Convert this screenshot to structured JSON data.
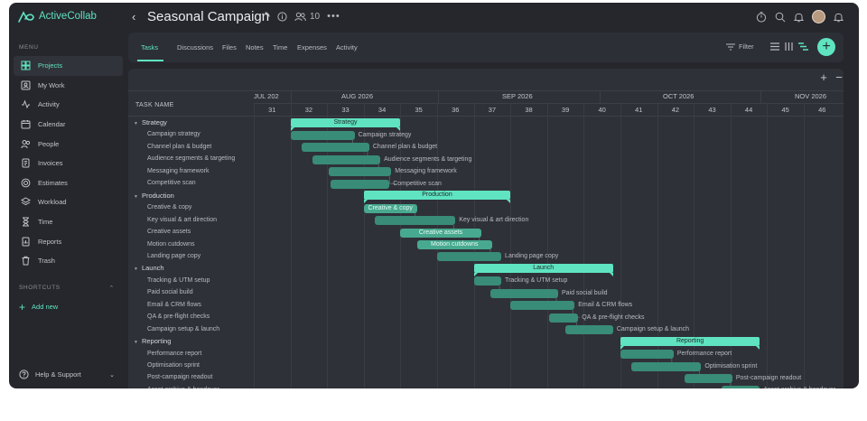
{
  "app": {
    "name": "ActiveCollab"
  },
  "header": {
    "title": "Seasonal Campaign",
    "member_count": "10"
  },
  "sidebar": {
    "menu_title": "MENU",
    "items": [
      {
        "label": "Projects",
        "icon": "grid-icon",
        "active": true
      },
      {
        "label": "My Work",
        "icon": "user-card-icon"
      },
      {
        "label": "Activity",
        "icon": "activity-icon"
      },
      {
        "label": "Calendar",
        "icon": "calendar-icon"
      },
      {
        "label": "People",
        "icon": "people-icon"
      },
      {
        "label": "Invoices",
        "icon": "invoice-icon"
      },
      {
        "label": "Estimates",
        "icon": "estimate-icon"
      },
      {
        "label": "Workload",
        "icon": "layers-icon"
      },
      {
        "label": "Time",
        "icon": "hourglass-icon"
      },
      {
        "label": "Reports",
        "icon": "report-icon"
      },
      {
        "label": "Trash",
        "icon": "trash-icon"
      }
    ],
    "shortcuts_title": "SHORTCUTS",
    "add_new": "Add new",
    "help": "Help & Support"
  },
  "tabs": [
    {
      "label": "Tasks",
      "active": true
    },
    {
      "label": "Discussions"
    },
    {
      "label": "Files"
    },
    {
      "label": "Notes"
    },
    {
      "label": "Time"
    },
    {
      "label": "Expenses"
    },
    {
      "label": "Activity"
    }
  ],
  "toolbar": {
    "filter": "Filter"
  },
  "gantt": {
    "task_name_header": "TASK NAME",
    "months": [
      "JUL 202",
      "AUG 2026",
      "SEP 2026",
      "OCT 2026",
      "NOV 2026"
    ],
    "weeks": [
      "31",
      "32",
      "33",
      "34",
      "35",
      "36",
      "37",
      "38",
      "39",
      "40",
      "41",
      "42",
      "43",
      "44",
      "45",
      "46"
    ],
    "rows": [
      {
        "type": "group",
        "name": "Strategy",
        "start": 32,
        "end": 35
      },
      {
        "type": "task",
        "name": "Campaign strategy",
        "start": 32,
        "end": 33.75
      },
      {
        "type": "task",
        "name": "Channel plan & budget",
        "start": 32.3,
        "end": 34.15
      },
      {
        "type": "task",
        "name": "Audience segments & targeting",
        "start": 32.6,
        "end": 34.45
      },
      {
        "type": "task",
        "name": "Messaging framework",
        "start": 33.05,
        "end": 34.75
      },
      {
        "type": "task",
        "name": "Competitive scan",
        "start": 33.1,
        "end": 34.7
      },
      {
        "type": "group",
        "name": "Production",
        "start": 34,
        "end": 38
      },
      {
        "type": "task",
        "name": "Creative & copy",
        "start": 34,
        "end": 35.45,
        "highlight": true
      },
      {
        "type": "task",
        "name": "Key visual & art direction",
        "start": 34.3,
        "end": 36.5
      },
      {
        "type": "task",
        "name": "Creative assets",
        "start": 35,
        "end": 37.2,
        "highlight": true
      },
      {
        "type": "task",
        "name": "Motion cutdowns",
        "start": 35.45,
        "end": 37.5,
        "highlight": true
      },
      {
        "type": "task",
        "name": "Landing page copy",
        "start": 36,
        "end": 37.75
      },
      {
        "type": "group",
        "name": "Launch",
        "start": 37,
        "end": 40.8
      },
      {
        "type": "task",
        "name": "Tracking & UTM setup",
        "start": 37,
        "end": 37.75
      },
      {
        "type": "task",
        "name": "Paid social build",
        "start": 37.45,
        "end": 39.3
      },
      {
        "type": "task",
        "name": "Email & CRM flows",
        "start": 38,
        "end": 39.75
      },
      {
        "type": "task",
        "name": "QA & pre-flight checks",
        "start": 39.05,
        "end": 39.85
      },
      {
        "type": "task",
        "name": "Campaign setup & launch",
        "start": 39.5,
        "end": 40.8
      },
      {
        "type": "group",
        "name": "Reporting",
        "start": 41,
        "end": 44.8
      },
      {
        "type": "task",
        "name": "Performance report",
        "start": 41,
        "end": 42.45
      },
      {
        "type": "task",
        "name": "Optimisation sprint",
        "start": 41.3,
        "end": 43.2
      },
      {
        "type": "task",
        "name": "Post-campaign readout",
        "start": 42.75,
        "end": 44.05
      },
      {
        "type": "task",
        "name": "Asset archive & handover",
        "start": 43.75,
        "end": 44.8
      }
    ]
  }
}
